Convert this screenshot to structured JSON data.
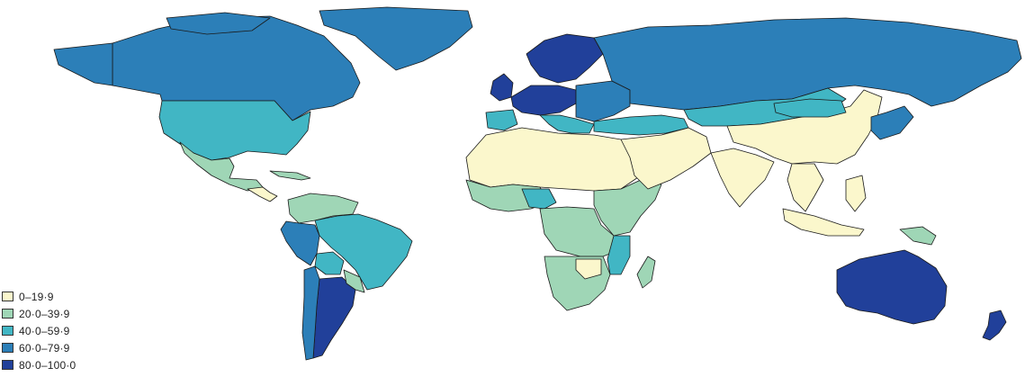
{
  "map": {
    "legend": [
      {
        "label": "0–19·9",
        "color": "#fbf7cc"
      },
      {
        "label": "20·0–39·9",
        "color": "#9fd6b6"
      },
      {
        "label": "40·0–59·9",
        "color": "#41b6c4"
      },
      {
        "label": "60·0–79·9",
        "color": "#2c7fb8"
      },
      {
        "label": "80·0–100·0",
        "color": "#21409a"
      }
    ]
  }
}
